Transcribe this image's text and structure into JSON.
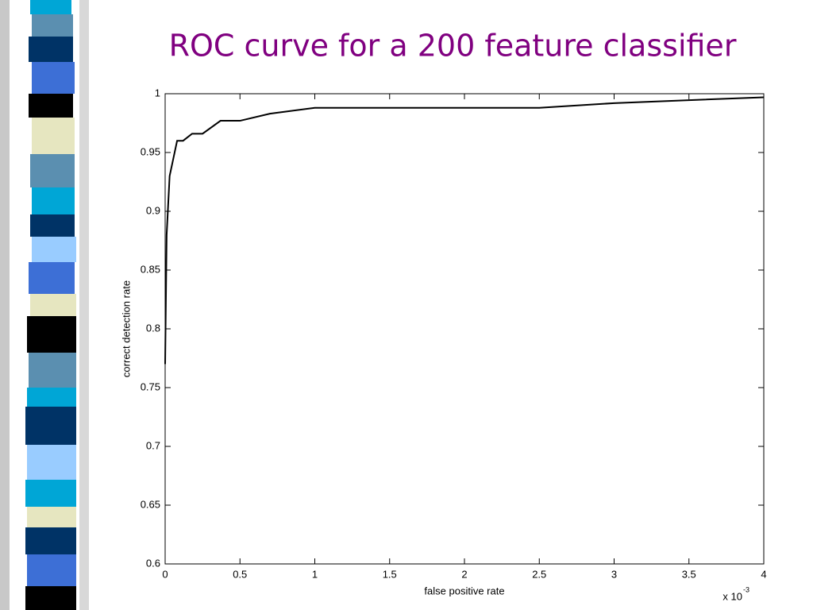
{
  "chart_data": {
    "type": "line",
    "title": "ROC curve for a 200 feature classifier",
    "x_label": "false positive rate",
    "y_label": "correct detection rate",
    "x_multiplier": "x 10",
    "x_exponent": "-3",
    "x": [
      0,
      0.01,
      0.03,
      0.08,
      0.12,
      0.18,
      0.25,
      0.37,
      0.5,
      0.7,
      1,
      2.5,
      3,
      4
    ],
    "series": [
      {
        "color": "#000000",
        "values": [
          0.77,
          0.88,
          0.93,
          0.96,
          0.96,
          0.966,
          0.966,
          0.977,
          0.977,
          0.983,
          0.988,
          0.988,
          0.992,
          0.997
        ]
      }
    ],
    "xlim": [
      0,
      4
    ],
    "xticks": [
      0,
      0.5,
      1,
      1.5,
      2,
      2.5,
      3,
      3.5,
      4
    ],
    "ylim": [
      0.6,
      1
    ],
    "yticks": [
      0.6,
      0.65,
      0.7,
      0.75,
      0.8,
      0.85,
      0.9,
      0.95,
      1
    ],
    "grid": false
  }
}
